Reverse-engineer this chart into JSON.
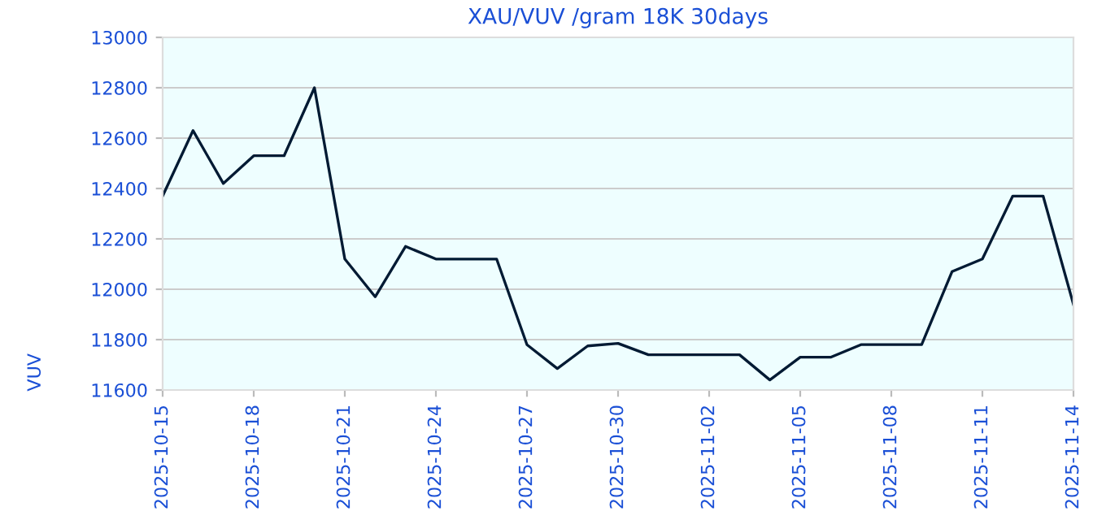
{
  "chart_data": {
    "type": "line",
    "title": "XAU/VUV /gram 18K 30days",
    "ylabel": "VUV",
    "x": [
      "2025-10-15",
      "2025-10-16",
      "2025-10-17",
      "2025-10-18",
      "2025-10-19",
      "2025-10-20",
      "2025-10-21",
      "2025-10-22",
      "2025-10-23",
      "2025-10-24",
      "2025-10-25",
      "2025-10-26",
      "2025-10-27",
      "2025-10-28",
      "2025-10-29",
      "2025-10-30",
      "2025-10-31",
      "2025-11-01",
      "2025-11-02",
      "2025-11-03",
      "2025-11-04",
      "2025-11-05",
      "2025-11-06",
      "2025-11-07",
      "2025-11-08",
      "2025-11-09",
      "2025-11-10",
      "2025-11-11",
      "2025-11-12",
      "2025-11-13",
      "2025-11-14"
    ],
    "series": [
      {
        "color": "#001a33",
        "values": [
          12370,
          12630,
          12420,
          12530,
          12530,
          12800,
          12120,
          11970,
          12170,
          12120,
          12120,
          12120,
          11780,
          11685,
          11775,
          11785,
          11740,
          11740,
          11740,
          11740,
          11640,
          11730,
          11730,
          11780,
          11780,
          11780,
          12070,
          12120,
          12370,
          12370,
          11940
        ]
      }
    ],
    "xlim": [
      "2025-10-15",
      "2025-11-14"
    ],
    "xticks": [
      "2025-10-15",
      "2025-10-18",
      "2025-10-21",
      "2025-10-24",
      "2025-10-27",
      "2025-10-30",
      "2025-11-02",
      "2025-11-05",
      "2025-11-08",
      "2025-11-11",
      "2025-11-14"
    ],
    "ylim": [
      11600,
      13000
    ],
    "yticks": [
      11600,
      11800,
      12000,
      12200,
      12400,
      12600,
      12800,
      13000
    ],
    "grid": "y",
    "legend": false,
    "marker": "none",
    "line_style": "solid"
  }
}
